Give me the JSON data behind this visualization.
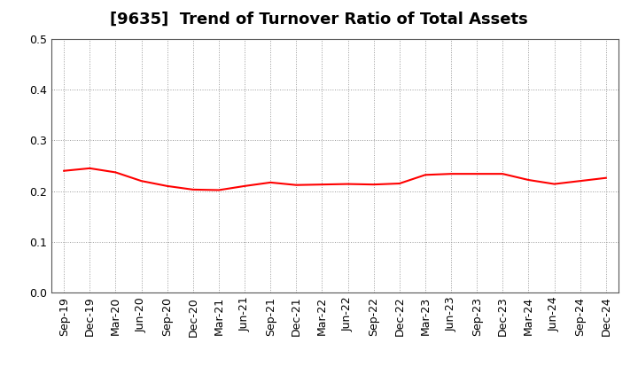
{
  "title": "[9635]  Trend of Turnover Ratio of Total Assets",
  "line_color": "#FF0000",
  "line_width": 1.5,
  "background_color": "#FFFFFF",
  "grid_color": "#999999",
  "ylim": [
    0.0,
    0.5
  ],
  "yticks": [
    0.0,
    0.1,
    0.2,
    0.3,
    0.4,
    0.5
  ],
  "x_labels": [
    "Sep-19",
    "Dec-19",
    "Mar-20",
    "Jun-20",
    "Sep-20",
    "Dec-20",
    "Mar-21",
    "Jun-21",
    "Sep-21",
    "Dec-21",
    "Mar-22",
    "Jun-22",
    "Sep-22",
    "Dec-22",
    "Mar-23",
    "Jun-23",
    "Sep-23",
    "Dec-23",
    "Mar-24",
    "Jun-24",
    "Sep-24",
    "Dec-24"
  ],
  "values": [
    0.24,
    0.245,
    0.237,
    0.22,
    0.21,
    0.203,
    0.202,
    0.21,
    0.217,
    0.212,
    0.213,
    0.214,
    0.213,
    0.215,
    0.232,
    0.234,
    0.234,
    0.234,
    0.222,
    0.214,
    0.22,
    0.226
  ],
  "title_fontsize": 13,
  "tick_fontsize": 9
}
